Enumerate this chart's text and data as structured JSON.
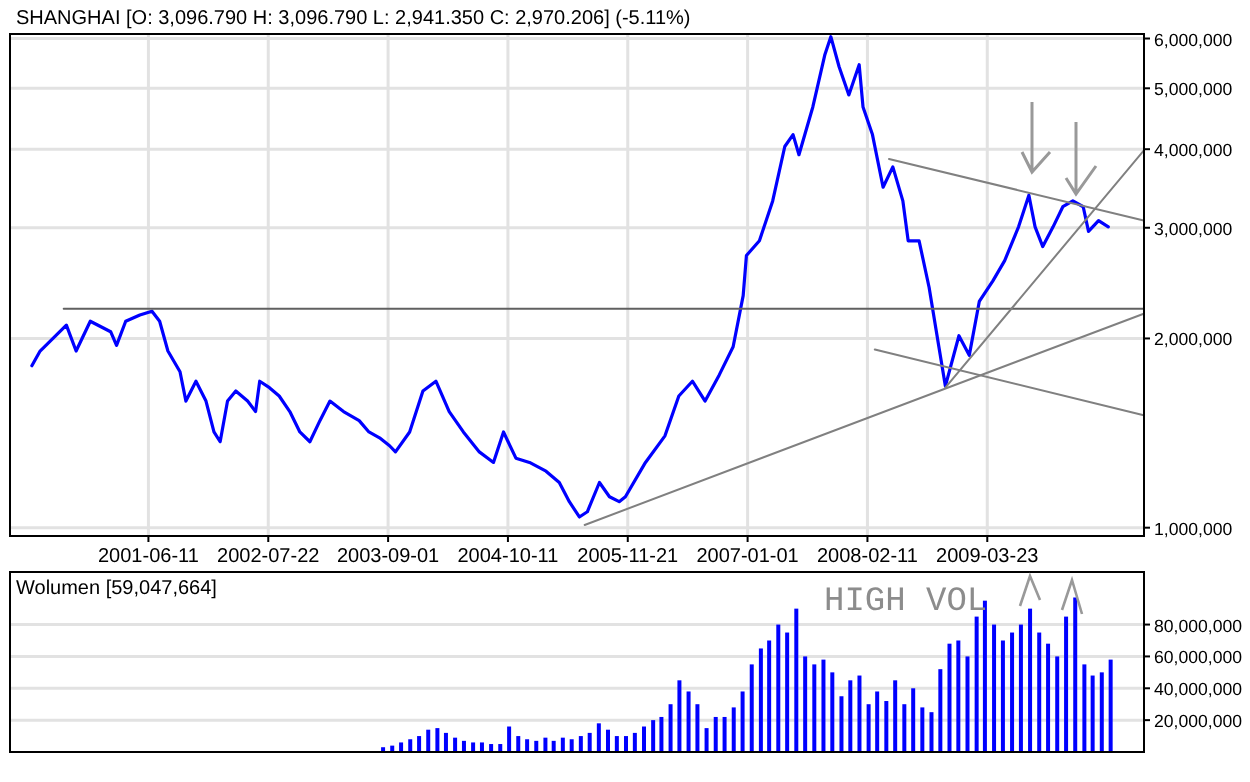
{
  "chart_data": [
    {
      "type": "line",
      "title": "SHANGHAI [O: 3,096.790  H: 3,096.790  L: 2,941.350  C: 2,970.206] (-5.11%)",
      "x": [
        "2000-05-12",
        "2000-06-09",
        "2000-09-06",
        "2000-10-09",
        "2000-11-26",
        "2001-02-03",
        "2001-02-23",
        "2001-03-26",
        "2001-05-13",
        "2001-06-23",
        "2001-07-19",
        "2001-08-16",
        "2001-09-26",
        "2001-10-16",
        "2001-11-19",
        "2001-12-23",
        "2002-01-19",
        "2002-02-09",
        "2002-03-06",
        "2002-04-03",
        "2002-05-13",
        "2002-06-09",
        "2002-06-23",
        "2002-07-26",
        "2002-08-28",
        "2002-10-03",
        "2002-11-06",
        "2002-12-10",
        "2003-01-13",
        "2003-02-16",
        "2003-04-03",
        "2003-05-26",
        "2003-06-28",
        "2003-08-03",
        "2003-09-06",
        "2003-09-26",
        "2003-11-13",
        "2003-12-28",
        "2004-02-10",
        "2004-03-26",
        "2004-05-13",
        "2004-07-06",
        "2004-08-23",
        "2004-09-26",
        "2004-11-07",
        "2004-12-23",
        "2005-02-17",
        "2005-04-03",
        "2005-05-07",
        "2005-06-10",
        "2005-07-07",
        "2005-08-17",
        "2005-09-20",
        "2005-10-23",
        "2005-11-13",
        "2006-01-20",
        "2006-03-27",
        "2006-05-13",
        "2006-06-28",
        "2006-08-10",
        "2006-09-27",
        "2006-11-13",
        "2006-12-17",
        "2006-12-28",
        "2007-02-10",
        "2007-03-27",
        "2007-05-07",
        "2007-06-04",
        "2007-06-24",
        "2007-08-10",
        "2007-09-20",
        "2007-10-10",
        "2007-11-07",
        "2007-12-10",
        "2008-01-14",
        "2008-01-27",
        "2008-02-28",
        "2008-04-04",
        "2008-05-07",
        "2008-06-10",
        "2008-06-28",
        "2008-08-04",
        "2008-09-07",
        "2008-10-10",
        "2008-11-01",
        "2008-12-17",
        "2009-01-21",
        "2009-02-24",
        "2009-04-11",
        "2009-05-21",
        "2009-07-07",
        "2009-08-11",
        "2009-09-01",
        "2009-09-27",
        "2009-11-01",
        "2009-12-04",
        "2010-01-07",
        "2010-02-11",
        "2010-03-01",
        "2010-04-04",
        "2010-05-07"
      ],
      "series": [
        {
          "color": "#0000ff",
          "values": [
            1810000,
            1910000,
            2100000,
            1910000,
            2130000,
            2050000,
            1950000,
            2130000,
            2180000,
            2210000,
            2130000,
            1910000,
            1770000,
            1590000,
            1710000,
            1590000,
            1420000,
            1370000,
            1590000,
            1650000,
            1590000,
            1530000,
            1710000,
            1670000,
            1620000,
            1530000,
            1420000,
            1370000,
            1480000,
            1590000,
            1530000,
            1480000,
            1420000,
            1390000,
            1350000,
            1320000,
            1420000,
            1650000,
            1710000,
            1530000,
            1420000,
            1320000,
            1270000,
            1420000,
            1290000,
            1270000,
            1230000,
            1180000,
            1100000,
            1040000,
            1060000,
            1180000,
            1120000,
            1100000,
            1120000,
            1270000,
            1400000,
            1620000,
            1710000,
            1590000,
            1750000,
            1940000,
            2340000,
            2710000,
            2860000,
            3310000,
            4040000,
            4220000,
            3920000,
            4670000,
            5660000,
            6040000,
            5410000,
            4880000,
            5450000,
            4670000,
            4220000,
            3480000,
            3750000,
            3310000,
            2860000,
            2860000,
            2410000,
            1940000,
            1680000,
            2020000,
            1880000,
            2290000,
            2470000,
            2660000,
            3010000,
            3380000,
            3010000,
            2800000,
            3010000,
            3240000,
            3310000,
            3240000,
            2960000,
            3080000,
            3010000
          ]
        },
        {
          "type": "line",
          "color": "#606060",
          "x": [
            "2000-08-28",
            "2010-09-04"
          ],
          "values": [
            2230000,
            2230000
          ]
        },
        {
          "type": "line",
          "color": "#808080",
          "x": [
            "2005-06-28",
            "2010-09-04"
          ],
          "values": [
            1010000,
            2190000
          ]
        },
        {
          "type": "line",
          "color": "#808080",
          "x": [
            "2008-04-24",
            "2010-09-04"
          ],
          "values": [
            3860000,
            3080000
          ]
        },
        {
          "type": "line",
          "color": "#808080",
          "x": [
            "2008-03-07",
            "2010-09-04"
          ],
          "values": [
            1920000,
            1510000
          ]
        },
        {
          "type": "line",
          "color": "#808080",
          "x": [
            "2008-11-01",
            "2010-09-04"
          ],
          "values": [
            1670000,
            3980000
          ]
        }
      ],
      "log": true,
      "xlim": [
        "2000-02-28",
        "2010-09-05"
      ],
      "ylim": [
        970000,
        6100000
      ],
      "xticks": [
        "2001-06-11",
        "2002-07-22",
        "2003-09-01",
        "2004-10-11",
        "2005-11-21",
        "2007-01-01",
        "2008-02-11",
        "2009-03-23"
      ],
      "yticks": [
        {
          "value": 1000000,
          "label": "1,000,000"
        },
        {
          "value": 2000000,
          "label": "2,000,000"
        },
        {
          "value": 3000000,
          "label": "3,000,000"
        },
        {
          "value": 4000000,
          "label": "4,000,000"
        },
        {
          "value": 5000000,
          "label": "5,000,000"
        },
        {
          "value": 6000000,
          "label": "6,000,000"
        }
      ],
      "grid": true
    },
    {
      "type": "bar",
      "title": "Wolumen [59,047,664]",
      "color": "#0000ff",
      "x": [
        "2003-08",
        "2003-09",
        "2003-10",
        "2003-11",
        "2003-12",
        "2004-01",
        "2004-02",
        "2004-03",
        "2004-04",
        "2004-05",
        "2004-06",
        "2004-07",
        "2004-08",
        "2004-09",
        "2004-10",
        "2004-11",
        "2004-12",
        "2005-01",
        "2005-02",
        "2005-03",
        "2005-04",
        "2005-05",
        "2005-06",
        "2005-07",
        "2005-08",
        "2005-09",
        "2005-10",
        "2005-11",
        "2005-12",
        "2006-01",
        "2006-02",
        "2006-03",
        "2006-04",
        "2006-05",
        "2006-06",
        "2006-07",
        "2006-08",
        "2006-09",
        "2006-10",
        "2006-11",
        "2006-12",
        "2007-01",
        "2007-02",
        "2007-03",
        "2007-04",
        "2007-05",
        "2007-06",
        "2007-07",
        "2007-08",
        "2007-09",
        "2007-10",
        "2007-11",
        "2007-12",
        "2008-01",
        "2008-02",
        "2008-03",
        "2008-04",
        "2008-05",
        "2008-06",
        "2008-07",
        "2008-08",
        "2008-09",
        "2008-10",
        "2008-11",
        "2008-12",
        "2009-01",
        "2009-02",
        "2009-03",
        "2009-04",
        "2009-05",
        "2009-06",
        "2009-07",
        "2009-08",
        "2009-09",
        "2009-10",
        "2009-11",
        "2009-12",
        "2010-01",
        "2010-02",
        "2010-03",
        "2010-04",
        "2010-05"
      ],
      "values": [
        3000000,
        4000000,
        6000000,
        8000000,
        10000000,
        14000000,
        15000000,
        12000000,
        9000000,
        7000000,
        6000000,
        6000000,
        5000000,
        5000000,
        16000000,
        10000000,
        8000000,
        7000000,
        9000000,
        7000000,
        9000000,
        8000000,
        10000000,
        12000000,
        18000000,
        14000000,
        10000000,
        10000000,
        12000000,
        16000000,
        20000000,
        22000000,
        30000000,
        45000000,
        38000000,
        30000000,
        15000000,
        22000000,
        22000000,
        28000000,
        38000000,
        55000000,
        65000000,
        70000000,
        80000000,
        75000000,
        90000000,
        60000000,
        55000000,
        58000000,
        50000000,
        35000000,
        45000000,
        48000000,
        30000000,
        38000000,
        32000000,
        45000000,
        30000000,
        40000000,
        28000000,
        25000000,
        52000000,
        68000000,
        70000000,
        60000000,
        85000000,
        95000000,
        80000000,
        70000000,
        75000000,
        80000000,
        90000000,
        75000000,
        68000000,
        60000000,
        85000000,
        97000000,
        55000000,
        48000000,
        50000000,
        58000000
      ],
      "xlim": [
        "2000-02-28",
        "2010-09-05"
      ],
      "ylim": [
        0,
        113000000
      ],
      "yticks": [
        {
          "value": 20000000,
          "label": "20,000,000"
        },
        {
          "value": 40000000,
          "label": "40,000,000"
        },
        {
          "value": 60000000,
          "label": "60,000,000"
        },
        {
          "value": 80000000,
          "label": "80,000,000"
        }
      ],
      "grid": true,
      "tick_labels": "y",
      "annotations": [
        "HIGH VOL"
      ]
    }
  ]
}
